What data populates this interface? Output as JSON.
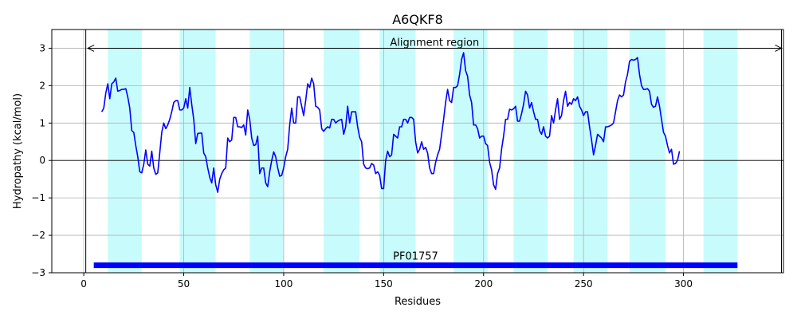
{
  "chart_data": {
    "type": "line",
    "title": "A6QKF8",
    "xlabel": "Residues",
    "ylabel": "Hydropathy (kcal/mol)",
    "xlim": [
      -16,
      350
    ],
    "ylim": [
      -3,
      3.5
    ],
    "xticks": [
      0,
      50,
      100,
      150,
      200,
      250,
      300
    ],
    "yticks": [
      -3,
      -2,
      -1,
      0,
      1,
      2,
      3
    ],
    "grid": true,
    "colors": {
      "line": "#0000ff",
      "band": "#c8fcfc",
      "domain_bar": "#0000ff",
      "grid": "#b0b0b0",
      "axis": "#000000"
    },
    "bands": [
      [
        12,
        29
      ],
      [
        48,
        66
      ],
      [
        83,
        100
      ],
      [
        120,
        138
      ],
      [
        148,
        166
      ],
      [
        185,
        202
      ],
      [
        215,
        232
      ],
      [
        245,
        262
      ],
      [
        273,
        291
      ],
      [
        310,
        327
      ]
    ],
    "alignment_region": {
      "label": "Alignment region",
      "start": 2,
      "end": 349,
      "y": 3.0
    },
    "domain": {
      "label": "PF01757",
      "start": 5,
      "end": 327,
      "y": -2.8
    },
    "vertical_lines": [
      1,
      349
    ],
    "series": [
      {
        "values": [
          [
            9,
            1.3
          ],
          [
            10,
            1.4
          ],
          [
            11,
            1.8
          ],
          [
            12,
            2.05
          ],
          [
            13,
            1.65
          ],
          [
            14,
            2.05
          ],
          [
            15,
            2.1
          ],
          [
            16,
            2.2
          ],
          [
            17,
            1.85
          ],
          [
            18,
            1.87
          ],
          [
            19,
            1.9
          ],
          [
            20,
            1.9
          ],
          [
            21,
            1.92
          ],
          [
            22,
            1.7
          ],
          [
            23,
            1.4
          ],
          [
            24,
            0.8
          ],
          [
            25,
            0.75
          ],
          [
            26,
            0.4
          ],
          [
            27,
            0.1
          ],
          [
            28,
            -0.3
          ],
          [
            29,
            -0.33
          ],
          [
            30,
            -0.1
          ],
          [
            31,
            0.28
          ],
          [
            32,
            -0.1
          ],
          [
            33,
            -0.15
          ],
          [
            34,
            0.25
          ],
          [
            35,
            -0.2
          ],
          [
            36,
            -0.37
          ],
          [
            37,
            -0.33
          ],
          [
            38,
            0.2
          ],
          [
            39,
            0.75
          ],
          [
            40,
            1.0
          ],
          [
            41,
            0.85
          ],
          [
            42,
            0.95
          ],
          [
            43,
            1.1
          ],
          [
            44,
            1.3
          ],
          [
            45,
            1.55
          ],
          [
            46,
            1.6
          ],
          [
            47,
            1.6
          ],
          [
            48,
            1.35
          ],
          [
            49,
            1.35
          ],
          [
            50,
            1.4
          ],
          [
            51,
            1.65
          ],
          [
            52,
            1.4
          ],
          [
            53,
            1.95
          ],
          [
            54,
            1.5
          ],
          [
            55,
            1.1
          ],
          [
            56,
            0.45
          ],
          [
            57,
            0.72
          ],
          [
            58,
            0.73
          ],
          [
            59,
            0.73
          ],
          [
            60,
            0.2
          ],
          [
            61,
            0.1
          ],
          [
            62,
            -0.2
          ],
          [
            63,
            -0.45
          ],
          [
            64,
            -0.6
          ],
          [
            65,
            -0.2
          ],
          [
            66,
            -0.65
          ],
          [
            67,
            -0.85
          ],
          [
            68,
            -0.5
          ],
          [
            69,
            -0.35
          ],
          [
            70,
            -0.25
          ],
          [
            71,
            -0.2
          ],
          [
            72,
            0.6
          ],
          [
            73,
            0.5
          ],
          [
            74,
            0.55
          ],
          [
            75,
            1.15
          ],
          [
            76,
            1.15
          ],
          [
            77,
            0.9
          ],
          [
            78,
            0.9
          ],
          [
            79,
            0.88
          ],
          [
            80,
            0.95
          ],
          [
            81,
            0.68
          ],
          [
            82,
            1.35
          ],
          [
            83,
            1.1
          ],
          [
            84,
            0.6
          ],
          [
            85,
            0.4
          ],
          [
            86,
            0.42
          ],
          [
            87,
            0.65
          ],
          [
            88,
            -0.35
          ],
          [
            89,
            -0.2
          ],
          [
            90,
            -0.2
          ],
          [
            91,
            -0.6
          ],
          [
            92,
            -0.7
          ],
          [
            93,
            -0.3
          ],
          [
            94,
            0.0
          ],
          [
            95,
            0.23
          ],
          [
            96,
            0.1
          ],
          [
            97,
            -0.2
          ],
          [
            98,
            -0.42
          ],
          [
            99,
            -0.4
          ],
          [
            100,
            -0.2
          ],
          [
            101,
            0.1
          ],
          [
            102,
            0.3
          ],
          [
            103,
            0.95
          ],
          [
            104,
            1.4
          ],
          [
            105,
            1.0
          ],
          [
            106,
            1.0
          ],
          [
            107,
            1.7
          ],
          [
            108,
            1.7
          ],
          [
            109,
            1.45
          ],
          [
            110,
            1.2
          ],
          [
            111,
            1.6
          ],
          [
            112,
            2.05
          ],
          [
            113,
            1.95
          ],
          [
            114,
            2.2
          ],
          [
            115,
            2.05
          ],
          [
            116,
            1.45
          ],
          [
            117,
            1.42
          ],
          [
            118,
            1.35
          ],
          [
            119,
            0.85
          ],
          [
            120,
            0.78
          ],
          [
            121,
            0.85
          ],
          [
            122,
            0.9
          ],
          [
            123,
            0.87
          ],
          [
            124,
            1.1
          ],
          [
            125,
            1.1
          ],
          [
            126,
            1.0
          ],
          [
            127,
            1.05
          ],
          [
            128,
            1.08
          ],
          [
            129,
            1.1
          ],
          [
            130,
            0.7
          ],
          [
            131,
            0.9
          ],
          [
            132,
            1.45
          ],
          [
            133,
            1.0
          ],
          [
            134,
            1.3
          ],
          [
            135,
            1.3
          ],
          [
            136,
            1.3
          ],
          [
            137,
            0.9
          ],
          [
            138,
            0.62
          ],
          [
            139,
            0.5
          ],
          [
            140,
            -0.1
          ],
          [
            141,
            -0.2
          ],
          [
            142,
            -0.22
          ],
          [
            143,
            -0.2
          ],
          [
            144,
            -0.08
          ],
          [
            145,
            -0.12
          ],
          [
            146,
            -0.35
          ],
          [
            147,
            -0.3
          ],
          [
            148,
            -0.4
          ],
          [
            149,
            -0.75
          ],
          [
            150,
            -0.75
          ],
          [
            151,
            0.0
          ],
          [
            152,
            0.25
          ],
          [
            153,
            0.1
          ],
          [
            154,
            0.15
          ],
          [
            155,
            0.7
          ],
          [
            156,
            0.65
          ],
          [
            157,
            0.6
          ],
          [
            158,
            0.9
          ],
          [
            159,
            0.9
          ],
          [
            160,
            1.1
          ],
          [
            161,
            1.1
          ],
          [
            162,
            1.0
          ],
          [
            163,
            1.15
          ],
          [
            164,
            1.15
          ],
          [
            165,
            1.1
          ],
          [
            166,
            0.5
          ],
          [
            167,
            0.2
          ],
          [
            168,
            0.3
          ],
          [
            169,
            0.5
          ],
          [
            170,
            0.3
          ],
          [
            171,
            0.35
          ],
          [
            172,
            0.2
          ],
          [
            173,
            -0.2
          ],
          [
            174,
            -0.35
          ],
          [
            175,
            -0.35
          ],
          [
            176,
            -0.05
          ],
          [
            177,
            0.15
          ],
          [
            178,
            0.3
          ],
          [
            179,
            0.7
          ],
          [
            180,
            1.1
          ],
          [
            181,
            1.55
          ],
          [
            182,
            1.9
          ],
          [
            183,
            1.6
          ],
          [
            184,
            1.55
          ],
          [
            185,
            1.95
          ],
          [
            186,
            1.95
          ],
          [
            187,
            2.0
          ],
          [
            188,
            2.3
          ],
          [
            189,
            2.7
          ],
          [
            190,
            2.88
          ],
          [
            191,
            2.4
          ],
          [
            192,
            2.25
          ],
          [
            193,
            1.75
          ],
          [
            194,
            1.55
          ],
          [
            195,
            0.95
          ],
          [
            196,
            0.95
          ],
          [
            197,
            0.85
          ],
          [
            198,
            0.6
          ],
          [
            199,
            0.65
          ],
          [
            200,
            0.65
          ],
          [
            201,
            0.45
          ],
          [
            202,
            0.4
          ],
          [
            203,
            -0.05
          ],
          [
            204,
            -0.25
          ],
          [
            205,
            -0.65
          ],
          [
            206,
            -0.77
          ],
          [
            207,
            -0.35
          ],
          [
            208,
            -0.2
          ],
          [
            209,
            0.3
          ],
          [
            210,
            0.65
          ],
          [
            211,
            1.1
          ],
          [
            212,
            1.1
          ],
          [
            213,
            1.37
          ],
          [
            214,
            1.35
          ],
          [
            215,
            1.38
          ],
          [
            216,
            1.45
          ],
          [
            217,
            1.05
          ],
          [
            218,
            1.05
          ],
          [
            219,
            1.25
          ],
          [
            220,
            1.5
          ],
          [
            221,
            1.85
          ],
          [
            222,
            1.75
          ],
          [
            223,
            1.4
          ],
          [
            224,
            1.55
          ],
          [
            225,
            1.3
          ],
          [
            226,
            1.1
          ],
          [
            227,
            1.1
          ],
          [
            228,
            0.8
          ],
          [
            229,
            0.7
          ],
          [
            230,
            0.9
          ],
          [
            231,
            0.65
          ],
          [
            232,
            0.6
          ],
          [
            233,
            0.65
          ],
          [
            234,
            1.2
          ],
          [
            235,
            1.0
          ],
          [
            236,
            1.35
          ],
          [
            237,
            1.65
          ],
          [
            238,
            1.1
          ],
          [
            239,
            1.2
          ],
          [
            240,
            1.6
          ],
          [
            241,
            1.85
          ],
          [
            242,
            1.45
          ],
          [
            243,
            1.55
          ],
          [
            244,
            1.5
          ],
          [
            245,
            1.65
          ],
          [
            246,
            1.6
          ],
          [
            247,
            1.7
          ],
          [
            248,
            1.45
          ],
          [
            249,
            1.35
          ],
          [
            250,
            1.2
          ],
          [
            251,
            1.3
          ],
          [
            252,
            1.3
          ],
          [
            253,
            0.9
          ],
          [
            254,
            0.55
          ],
          [
            255,
            0.15
          ],
          [
            256,
            0.4
          ],
          [
            257,
            0.7
          ],
          [
            258,
            0.65
          ],
          [
            259,
            0.6
          ],
          [
            260,
            0.5
          ],
          [
            261,
            0.9
          ],
          [
            262,
            0.9
          ],
          [
            263,
            0.92
          ],
          [
            264,
            0.95
          ],
          [
            265,
            1.0
          ],
          [
            266,
            1.3
          ],
          [
            267,
            1.6
          ],
          [
            268,
            1.75
          ],
          [
            269,
            1.7
          ],
          [
            270,
            1.75
          ],
          [
            271,
            2.1
          ],
          [
            272,
            2.3
          ],
          [
            273,
            2.65
          ],
          [
            274,
            2.7
          ],
          [
            275,
            2.68
          ],
          [
            276,
            2.7
          ],
          [
            277,
            2.75
          ],
          [
            278,
            2.3
          ],
          [
            279,
            2.0
          ],
          [
            280,
            1.9
          ],
          [
            281,
            1.9
          ],
          [
            282,
            1.92
          ],
          [
            283,
            1.85
          ],
          [
            284,
            1.5
          ],
          [
            285,
            1.42
          ],
          [
            286,
            1.45
          ],
          [
            287,
            1.7
          ],
          [
            288,
            1.45
          ],
          [
            289,
            1.1
          ],
          [
            290,
            0.75
          ],
          [
            291,
            0.65
          ],
          [
            292,
            0.4
          ],
          [
            293,
            0.2
          ],
          [
            294,
            0.3
          ],
          [
            295,
            -0.1
          ],
          [
            296,
            -0.08
          ],
          [
            297,
            0.0
          ],
          [
            298,
            0.25
          ]
        ]
      }
    ]
  }
}
